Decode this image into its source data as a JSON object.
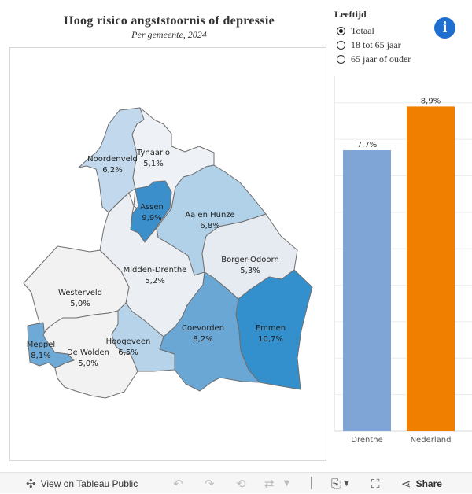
{
  "header": {
    "title": "Hoog risico angststoornis of depressie",
    "subtitle": "Per gemeente, 2024"
  },
  "legend": {
    "title": "Leeftijd",
    "options": [
      "Totaal",
      "18 tot 65 jaar",
      "65 jaar of ouder"
    ],
    "selected": "Totaal"
  },
  "info_icon": {
    "glyph": "i",
    "name": "info-icon"
  },
  "map": {
    "municipalities": [
      {
        "name": "Noordenveld",
        "value_label": "6,2%",
        "value": 6.2,
        "color": "#c2d8ec"
      },
      {
        "name": "Tynaarlo",
        "value_label": "5,1%",
        "value": 5.1,
        "color": "#eef1f5"
      },
      {
        "name": "Assen",
        "value_label": "9,9%",
        "value": 9.9,
        "color": "#3b8fcb"
      },
      {
        "name": "Aa en Hunze",
        "value_label": "6,8%",
        "value": 6.8,
        "color": "#b0d1e8"
      },
      {
        "name": "Borger-Odoorn",
        "value_label": "5,3%",
        "value": 5.3,
        "color": "#e6ebf1"
      },
      {
        "name": "Midden-Drenthe",
        "value_label": "5,2%",
        "value": 5.2,
        "color": "#ebeff3"
      },
      {
        "name": "Westerveld",
        "value_label": "5,0%",
        "value": 5.0,
        "color": "#f2f2f2"
      },
      {
        "name": "Meppel",
        "value_label": "8,1%",
        "value": 8.1,
        "color": "#6faad6"
      },
      {
        "name": "De Wolden",
        "value_label": "5,0%",
        "value": 5.0,
        "color": "#f2f2f2"
      },
      {
        "name": "Hoogeveen",
        "value_label": "6,5%",
        "value": 6.5,
        "color": "#b7d3ea"
      },
      {
        "name": "Coevorden",
        "value_label": "8,2%",
        "value": 8.2,
        "color": "#6aa7d5"
      },
      {
        "name": "Emmen",
        "value_label": "10,7%",
        "value": 10.7,
        "color": "#3390cc"
      }
    ]
  },
  "chart_data": {
    "type": "bar",
    "categories": [
      "Drenthe",
      "Nederland"
    ],
    "values": [
      7.7,
      8.9
    ],
    "value_labels": [
      "7,7%",
      "8,9%"
    ],
    "colors": [
      "#7ea5d6",
      "#f07f00"
    ],
    "ylim": [
      0,
      9.75
    ],
    "grid": true
  },
  "toolbar": {
    "view_label": "View on Tableau Public",
    "share_label": "Share"
  }
}
